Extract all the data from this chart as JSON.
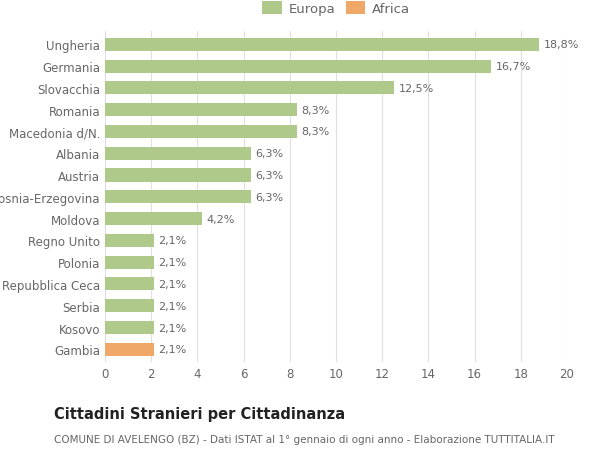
{
  "categories": [
    "Ungheria",
    "Germania",
    "Slovacchia",
    "Romania",
    "Macedonia d/N.",
    "Albania",
    "Austria",
    "Bosnia-Erzegovina",
    "Moldova",
    "Regno Unito",
    "Polonia",
    "Repubblica Ceca",
    "Serbia",
    "Kosovo",
    "Gambia"
  ],
  "values": [
    18.8,
    16.7,
    12.5,
    8.3,
    8.3,
    6.3,
    6.3,
    6.3,
    4.2,
    2.1,
    2.1,
    2.1,
    2.1,
    2.1,
    2.1
  ],
  "labels": [
    "18,8%",
    "16,7%",
    "12,5%",
    "8,3%",
    "8,3%",
    "6,3%",
    "6,3%",
    "6,3%",
    "4,2%",
    "2,1%",
    "2,1%",
    "2,1%",
    "2,1%",
    "2,1%",
    "2,1%"
  ],
  "colors": [
    "#aec98a",
    "#aec98a",
    "#aec98a",
    "#aec98a",
    "#aec98a",
    "#aec98a",
    "#aec98a",
    "#aec98a",
    "#aec98a",
    "#aec98a",
    "#aec98a",
    "#aec98a",
    "#aec98a",
    "#aec98a",
    "#f0a868"
  ],
  "europa_color": "#aec98a",
  "africa_color": "#f0a868",
  "title": "Cittadini Stranieri per Cittadinanza",
  "subtitle": "COMUNE DI AVELENGO (BZ) - Dati ISTAT al 1° gennaio di ogni anno - Elaborazione TUTTITALIA.IT",
  "xlim": [
    0,
    20
  ],
  "xticks": [
    0,
    2,
    4,
    6,
    8,
    10,
    12,
    14,
    16,
    18,
    20
  ],
  "background_color": "#ffffff",
  "grid_color": "#e0e0e0",
  "bar_height": 0.6,
  "label_fontsize": 8.0,
  "title_fontsize": 10.5,
  "subtitle_fontsize": 7.5,
  "tick_fontsize": 8.5,
  "legend_fontsize": 9.5,
  "text_color": "#666666",
  "title_color": "#222222"
}
